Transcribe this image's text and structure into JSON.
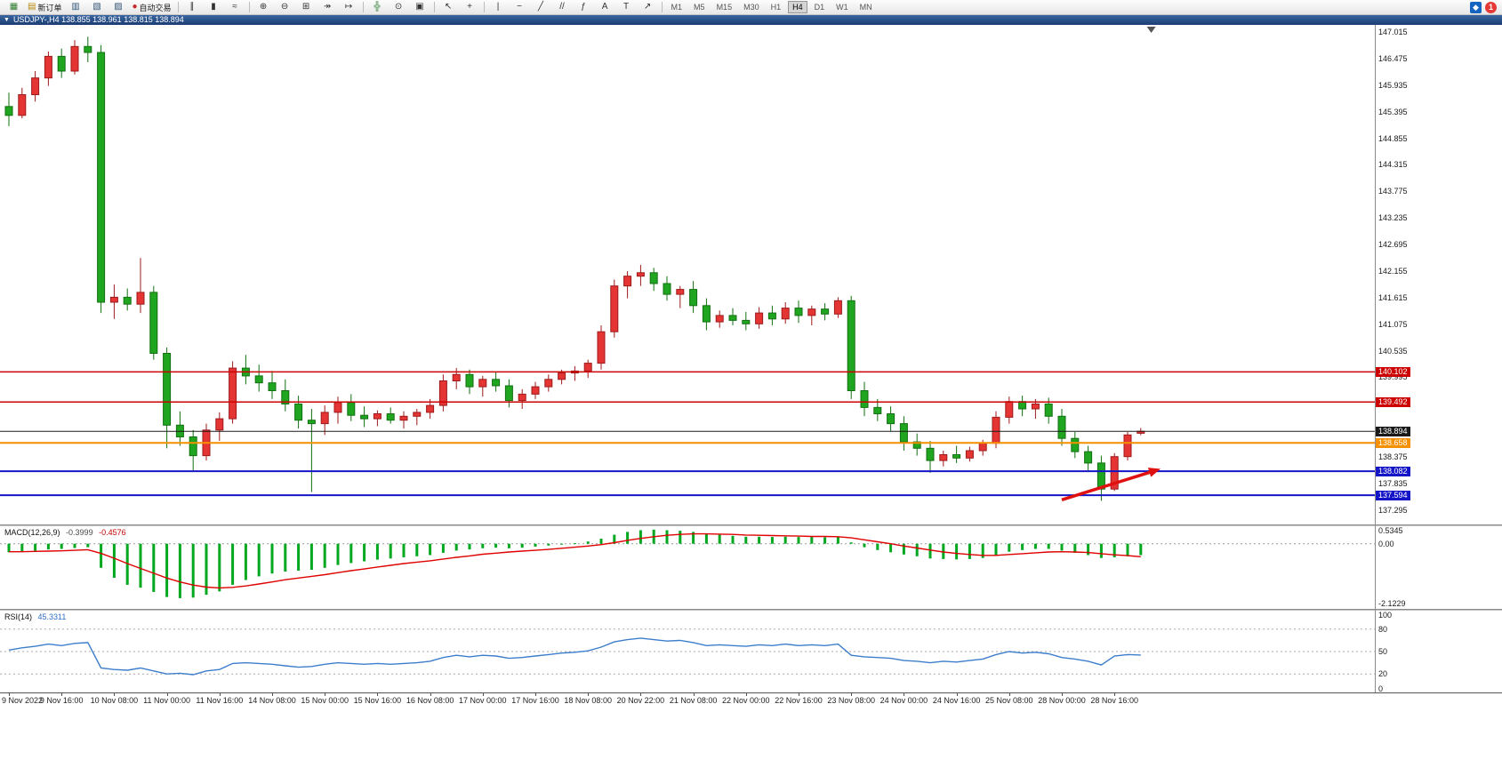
{
  "window": {
    "app_title": "MetaTrader"
  },
  "toolbar": {
    "buttons": [
      {
        "name": "new-chart-button",
        "glyph": "▦",
        "color": "#2e7d32"
      },
      {
        "name": "new-order-button",
        "glyph": "▤",
        "color": "#b8860b",
        "label": "新订单"
      },
      {
        "name": "market-watch-button",
        "glyph": "▥",
        "color": "#33567a"
      },
      {
        "name": "navigator-button",
        "glyph": "▧",
        "color": "#33567a"
      },
      {
        "name": "terminal-button",
        "glyph": "▨",
        "color": "#33567a"
      },
      {
        "name": "autotrading-button",
        "glyph": "●",
        "color": "#c62828",
        "label": "自动交易"
      },
      {
        "name": "sep"
      },
      {
        "name": "bar-chart-button",
        "glyph": "∥",
        "color": "#333333"
      },
      {
        "name": "candlestick-chart-button",
        "glyph": "▮",
        "color": "#333333"
      },
      {
        "name": "line-chart-button",
        "glyph": "≈",
        "color": "#333333"
      },
      {
        "name": "sep"
      },
      {
        "name": "zoom-in-button",
        "glyph": "⊕",
        "color": "#333333"
      },
      {
        "name": "zoom-out-button",
        "glyph": "⊖",
        "color": "#333333"
      },
      {
        "name": "tile-windows-button",
        "glyph": "⊞",
        "color": "#333333"
      },
      {
        "name": "auto-scroll-button",
        "glyph": "↠",
        "color": "#333333"
      },
      {
        "name": "chart-shift-button",
        "glyph": "↦",
        "color": "#333333"
      },
      {
        "name": "sep"
      },
      {
        "name": "indicators-button",
        "glyph": "╬",
        "color": "#2e7d32"
      },
      {
        "name": "periods-button",
        "glyph": "⊙",
        "color": "#333333"
      },
      {
        "name": "templates-button",
        "glyph": "▣",
        "color": "#333333"
      },
      {
        "name": "sep"
      },
      {
        "name": "cursor-button",
        "glyph": "↖",
        "color": "#333333"
      },
      {
        "name": "crosshair-button",
        "glyph": "+",
        "color": "#333333"
      },
      {
        "name": "sep"
      },
      {
        "name": "vertical-line-button",
        "glyph": "|",
        "color": "#333333"
      },
      {
        "name": "horizontal-line-button",
        "glyph": "−",
        "color": "#333333"
      },
      {
        "name": "trendline-button",
        "glyph": "╱",
        "color": "#333333"
      },
      {
        "name": "channel-button",
        "glyph": "//",
        "color": "#333333"
      },
      {
        "name": "fibonacci-button",
        "glyph": "ƒ",
        "color": "#333333"
      },
      {
        "name": "text-button",
        "glyph": "A",
        "color": "#333333"
      },
      {
        "name": "label-button",
        "glyph": "T",
        "color": "#333333"
      },
      {
        "name": "arrows-button",
        "glyph": "↗",
        "color": "#333333"
      },
      {
        "name": "sep"
      }
    ],
    "timeframes": [
      "M1",
      "M5",
      "M15",
      "M30",
      "H1",
      "H4",
      "D1",
      "W1",
      "MN"
    ],
    "active_timeframe": "H4",
    "right_buttons": [
      {
        "name": "community-button",
        "glyph": "◆",
        "bg": "#1565c0"
      },
      {
        "name": "news-count-badge",
        "glyph": "1",
        "bg": "#e53935"
      }
    ]
  },
  "chart": {
    "title": "USDJPY-,H4  138.855 138.961 138.815 138.894",
    "symbol": "USDJPY-",
    "period": "H4",
    "ohlc": {
      "open": "138.855",
      "high": "138.961",
      "low": "138.815",
      "close": "138.894"
    },
    "price_axis_labels": [
      "147.015",
      "146.475",
      "145.935",
      "145.395",
      "144.855",
      "144.315",
      "143.775",
      "143.235",
      "142.695",
      "142.155",
      "141.615",
      "141.075",
      "140.535",
      "139.995",
      "139.455",
      "138.915",
      "138.375",
      "137.835",
      "137.295"
    ],
    "price_markers": [
      {
        "value": "140.102",
        "bg": "#cc0000"
      },
      {
        "value": "139.492",
        "bg": "#cc0000"
      },
      {
        "value": "138.894",
        "bg": "#1a1a1a"
      },
      {
        "value": "138.658",
        "bg": "#f59000"
      },
      {
        "value": "138.082",
        "bg": "#1515c8"
      },
      {
        "value": "137.594",
        "bg": "#1515c8"
      }
    ],
    "time_axis_labels": [
      "9 Nov 2022",
      "9 Nov 16:00",
      "10 Nov 08:00",
      "11 Nov 00:00",
      "11 Nov 16:00",
      "14 Nov 08:00",
      "15 Nov 00:00",
      "15 Nov 16:00",
      "16 Nov 08:00",
      "17 Nov 00:00",
      "17 Nov 16:00",
      "18 Nov 08:00",
      "20 Nov 22:00",
      "21 Nov 08:00",
      "22 Nov 00:00",
      "22 Nov 16:00",
      "23 Nov 08:00",
      "24 Nov 00:00",
      "24 Nov 16:00",
      "25 Nov 08:00",
      "28 Nov 00:00",
      "28 Nov 16:00"
    ]
  },
  "indicators": {
    "macd": {
      "name_label": "MACD(12,26,9)",
      "main_value": "-0.3999",
      "signal_value": "-0.4576",
      "axis_labels": [
        "0.5345",
        "0.00",
        "-2.1229"
      ]
    },
    "rsi": {
      "name_label": "RSI(14)",
      "value": "45.3311",
      "axis_labels": [
        "100",
        "80",
        "50",
        "20",
        "0"
      ]
    }
  },
  "chart_data": [
    {
      "type": "candlestick",
      "title": "USDJPY- H4",
      "ylim": [
        137.0,
        147.16
      ],
      "x_labels_every_4th_candle": [
        "9 Nov 2022",
        "9 Nov 16:00",
        "10 Nov 08:00",
        "11 Nov 00:00",
        "11 Nov 16:00",
        "14 Nov 08:00",
        "15 Nov 00:00",
        "15 Nov 16:00",
        "16 Nov 08:00",
        "17 Nov 00:00",
        "17 Nov 16:00",
        "18 Nov 08:00",
        "20 Nov 22:00",
        "21 Nov 08:00",
        "22 Nov 00:00",
        "22 Nov 16:00",
        "23 Nov 08:00",
        "24 Nov 00:00",
        "24 Nov 16:00",
        "25 Nov 08:00",
        "28 Nov 00:00",
        "28 Nov 16:00"
      ],
      "colors": {
        "up": "#e43434",
        "up_stroke": "#9e1a1a",
        "down": "#1fa51f",
        "down_stroke": "#127012"
      },
      "ohlc": [
        [
          145.5,
          145.78,
          145.1,
          145.32
        ],
        [
          145.32,
          145.88,
          145.26,
          145.74
        ],
        [
          145.74,
          146.22,
          145.6,
          146.08
        ],
        [
          146.08,
          146.62,
          145.92,
          146.52
        ],
        [
          146.52,
          146.68,
          146.08,
          146.22
        ],
        [
          146.22,
          146.85,
          146.15,
          146.72
        ],
        [
          146.72,
          146.92,
          146.4,
          146.6
        ],
        [
          146.6,
          146.75,
          141.3,
          141.52
        ],
        [
          141.52,
          141.88,
          141.18,
          141.62
        ],
        [
          141.62,
          141.8,
          141.35,
          141.48
        ],
        [
          141.48,
          142.42,
          141.3,
          141.72
        ],
        [
          141.72,
          141.85,
          140.35,
          140.48
        ],
        [
          140.48,
          140.6,
          138.55,
          139.02
        ],
        [
          139.02,
          139.3,
          138.6,
          138.78
        ],
        [
          138.78,
          138.92,
          138.1,
          138.4
        ],
        [
          138.4,
          139.05,
          138.3,
          138.92
        ],
        [
          138.92,
          139.28,
          138.7,
          139.15
        ],
        [
          139.15,
          140.32,
          139.05,
          140.18
        ],
        [
          140.18,
          140.45,
          139.85,
          140.02
        ],
        [
          140.02,
          140.25,
          139.7,
          139.88
        ],
        [
          139.88,
          140.12,
          139.55,
          139.72
        ],
        [
          139.72,
          139.95,
          139.3,
          139.45
        ],
        [
          139.45,
          139.62,
          138.95,
          139.12
        ],
        [
          139.12,
          139.35,
          137.66,
          139.05
        ],
        [
          139.05,
          139.42,
          138.82,
          139.28
        ],
        [
          139.28,
          139.6,
          139.05,
          139.48
        ],
        [
          139.48,
          139.65,
          139.1,
          139.22
        ],
        [
          139.22,
          139.4,
          138.98,
          139.15
        ],
        [
          139.15,
          139.32,
          139.0,
          139.25
        ],
        [
          139.25,
          139.38,
          139.05,
          139.12
        ],
        [
          139.12,
          139.3,
          138.95,
          139.2
        ],
        [
          139.2,
          139.35,
          139.02,
          139.28
        ],
        [
          139.28,
          139.55,
          139.15,
          139.42
        ],
        [
          139.42,
          140.05,
          139.3,
          139.92
        ],
        [
          139.92,
          140.18,
          139.75,
          140.05
        ],
        [
          140.05,
          140.15,
          139.65,
          139.8
        ],
        [
          139.8,
          140.02,
          139.6,
          139.95
        ],
        [
          139.95,
          140.1,
          139.7,
          139.82
        ],
        [
          139.82,
          139.95,
          139.38,
          139.52
        ],
        [
          139.52,
          139.75,
          139.35,
          139.65
        ],
        [
          139.65,
          139.9,
          139.55,
          139.8
        ],
        [
          139.8,
          140.05,
          139.7,
          139.95
        ],
        [
          139.95,
          140.15,
          139.85,
          140.08
        ],
        [
          140.08,
          140.22,
          139.92,
          140.12
        ],
        [
          140.12,
          140.35,
          139.98,
          140.28
        ],
        [
          140.28,
          141.05,
          140.15,
          140.92
        ],
        [
          140.92,
          141.98,
          140.8,
          141.85
        ],
        [
          141.85,
          142.15,
          141.6,
          142.05
        ],
        [
          142.05,
          142.28,
          141.85,
          142.12
        ],
        [
          142.12,
          142.22,
          141.75,
          141.9
        ],
        [
          141.9,
          142.05,
          141.55,
          141.68
        ],
        [
          141.68,
          141.85,
          141.4,
          141.78
        ],
        [
          141.78,
          141.95,
          141.3,
          141.45
        ],
        [
          141.45,
          141.6,
          140.95,
          141.12
        ],
        [
          141.12,
          141.35,
          141.0,
          141.25
        ],
        [
          141.25,
          141.4,
          141.05,
          141.15
        ],
        [
          141.15,
          141.32,
          140.95,
          141.08
        ],
        [
          141.08,
          141.42,
          140.98,
          141.3
        ],
        [
          141.3,
          141.45,
          141.05,
          141.18
        ],
        [
          141.18,
          141.52,
          141.08,
          141.4
        ],
        [
          141.4,
          141.55,
          141.1,
          141.25
        ],
        [
          141.25,
          141.45,
          141.05,
          141.38
        ],
        [
          141.38,
          141.5,
          141.15,
          141.28
        ],
        [
          141.28,
          141.62,
          141.2,
          141.55
        ],
        [
          141.55,
          141.65,
          139.55,
          139.72
        ],
        [
          139.72,
          139.9,
          139.2,
          139.38
        ],
        [
          139.38,
          139.55,
          139.1,
          139.25
        ],
        [
          139.25,
          139.4,
          138.9,
          139.05
        ],
        [
          139.05,
          139.2,
          138.5,
          138.68
        ],
        [
          138.68,
          138.85,
          138.4,
          138.55
        ],
        [
          138.55,
          138.7,
          138.05,
          138.3
        ],
        [
          138.3,
          138.5,
          138.18,
          138.42
        ],
        [
          138.42,
          138.6,
          138.25,
          138.35
        ],
        [
          138.35,
          138.58,
          138.28,
          138.5
        ],
        [
          138.5,
          138.72,
          138.4,
          138.65
        ],
        [
          138.65,
          139.3,
          138.55,
          139.18
        ],
        [
          139.18,
          139.6,
          139.05,
          139.5
        ],
        [
          139.5,
          139.62,
          139.2,
          139.35
        ],
        [
          139.35,
          139.55,
          139.15,
          139.45
        ],
        [
          139.45,
          139.58,
          139.05,
          139.2
        ],
        [
          139.2,
          139.35,
          138.6,
          138.75
        ],
        [
          138.75,
          138.88,
          138.35,
          138.48
        ],
        [
          138.48,
          138.6,
          138.1,
          138.25
        ],
        [
          138.25,
          138.4,
          137.48,
          137.72
        ],
        [
          137.72,
          138.45,
          137.68,
          138.38
        ],
        [
          138.38,
          138.88,
          138.3,
          138.82
        ],
        [
          138.855,
          138.961,
          138.815,
          138.894
        ]
      ],
      "levels": [
        {
          "price": 140.102,
          "color": "#cc0000",
          "width": 1.5
        },
        {
          "price": 139.492,
          "color": "#cc0000",
          "width": 1.5
        },
        {
          "price": 138.894,
          "color": "#1a1a1a",
          "width": 1
        },
        {
          "price": 138.658,
          "color": "#f59000",
          "width": 2
        },
        {
          "price": 138.082,
          "color": "#1515c8",
          "width": 2
        },
        {
          "price": 137.594,
          "color": "#1515c8",
          "width": 2
        }
      ],
      "shift_marker_i": 86.8,
      "annotations": [
        {
          "type": "arrow",
          "from": {
            "i": 80,
            "price": 137.5
          },
          "to": {
            "i": 87.5,
            "price": 138.13
          },
          "color": "#e01010"
        }
      ]
    },
    {
      "type": "bar",
      "name": "MACD(12,26,9)",
      "ylim": [
        -2.3,
        0.62
      ],
      "axis_marks": [
        0.5345,
        0.0,
        -2.1229
      ],
      "colors": {
        "histogram": "#00a81f",
        "signal": "#e00000"
      },
      "histogram": [
        -0.3,
        -0.28,
        -0.25,
        -0.2,
        -0.18,
        -0.15,
        -0.12,
        -0.85,
        -1.2,
        -1.45,
        -1.55,
        -1.7,
        -1.88,
        -1.92,
        -1.9,
        -1.8,
        -1.68,
        -1.45,
        -1.28,
        -1.15,
        -1.05,
        -0.98,
        -0.95,
        -0.92,
        -0.85,
        -0.75,
        -0.68,
        -0.62,
        -0.56,
        -0.52,
        -0.48,
        -0.44,
        -0.4,
        -0.32,
        -0.24,
        -0.2,
        -0.16,
        -0.14,
        -0.16,
        -0.14,
        -0.1,
        -0.06,
        -0.02,
        0.02,
        0.08,
        0.18,
        0.32,
        0.42,
        0.48,
        0.5,
        0.48,
        0.46,
        0.42,
        0.36,
        0.32,
        0.28,
        0.25,
        0.25,
        0.24,
        0.25,
        0.24,
        0.24,
        0.23,
        0.24,
        0.05,
        -0.12,
        -0.22,
        -0.3,
        -0.38,
        -0.44,
        -0.52,
        -0.54,
        -0.55,
        -0.54,
        -0.5,
        -0.4,
        -0.28,
        -0.22,
        -0.18,
        -0.18,
        -0.24,
        -0.32,
        -0.4,
        -0.5,
        -0.48,
        -0.44,
        -0.3999
      ],
      "signal": [
        -0.28,
        -0.28,
        -0.27,
        -0.26,
        -0.25,
        -0.23,
        -0.21,
        -0.34,
        -0.51,
        -0.7,
        -0.87,
        -1.04,
        -1.21,
        -1.35,
        -1.46,
        -1.53,
        -1.56,
        -1.54,
        -1.49,
        -1.42,
        -1.35,
        -1.27,
        -1.21,
        -1.15,
        -1.09,
        -1.02,
        -0.95,
        -0.89,
        -0.82,
        -0.76,
        -0.7,
        -0.65,
        -0.6,
        -0.54,
        -0.48,
        -0.43,
        -0.37,
        -0.33,
        -0.29,
        -0.26,
        -0.23,
        -0.2,
        -0.16,
        -0.12,
        -0.08,
        -0.03,
        0.04,
        0.12,
        0.19,
        0.25,
        0.3,
        0.33,
        0.35,
        0.35,
        0.34,
        0.33,
        0.31,
        0.3,
        0.29,
        0.28,
        0.27,
        0.26,
        0.26,
        0.25,
        0.21,
        0.14,
        0.07,
        0.0,
        -0.08,
        -0.15,
        -0.22,
        -0.29,
        -0.34,
        -0.38,
        -0.41,
        -0.41,
        -0.38,
        -0.35,
        -0.32,
        -0.29,
        -0.28,
        -0.29,
        -0.31,
        -0.35,
        -0.39,
        -0.42,
        -0.4576
      ]
    },
    {
      "type": "line",
      "name": "RSI(14)",
      "ylim": [
        0,
        100
      ],
      "levels": [
        80,
        50,
        20
      ],
      "colors": {
        "line": "#3d7ecc"
      },
      "values": [
        52,
        55,
        57,
        60,
        58,
        61,
        62,
        28,
        26,
        25,
        28,
        24,
        20,
        21,
        19,
        24,
        26,
        34,
        35,
        34,
        33,
        31,
        29,
        30,
        33,
        35,
        34,
        33,
        34,
        33,
        34,
        35,
        37,
        42,
        45,
        43,
        45,
        44,
        41,
        42,
        44,
        46,
        48,
        49,
        51,
        56,
        63,
        66,
        68,
        66,
        64,
        65,
        62,
        58,
        59,
        58,
        57,
        59,
        58,
        60,
        58,
        59,
        58,
        60,
        45,
        43,
        42,
        41,
        38,
        37,
        35,
        37,
        36,
        38,
        40,
        46,
        50,
        48,
        49,
        47,
        42,
        40,
        37,
        32,
        44,
        46,
        45.33
      ]
    }
  ]
}
